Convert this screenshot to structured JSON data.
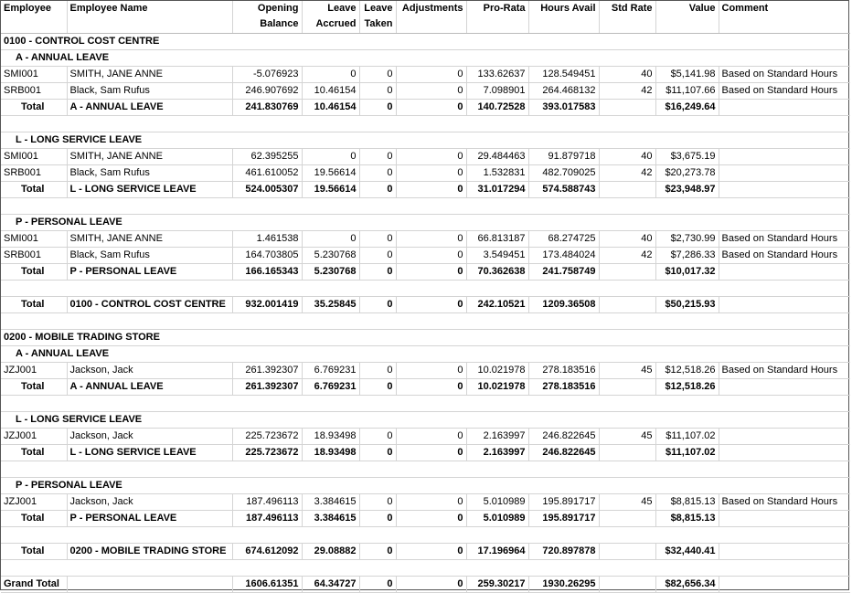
{
  "headers": [
    "Employee",
    "Employee Name",
    "Opening Balance",
    "Leave Accrued",
    "Leave Taken",
    "Adjustments",
    "Pro-Rata",
    "Hours Avail",
    "Std Rate",
    "Value",
    "Comment"
  ],
  "rows": [
    {
      "type": "section",
      "text": "0100 - CONTROL COST CENTRE"
    },
    {
      "type": "subsection",
      "text": "A  - ANNUAL LEAVE"
    },
    {
      "type": "data",
      "cells": [
        "SMI001",
        "SMITH, JANE ANNE",
        "-5.076923",
        "0",
        "0",
        "0",
        "133.62637",
        "128.549451",
        "40",
        "$5,141.98",
        "Based on Standard Hours"
      ]
    },
    {
      "type": "data",
      "cells": [
        "SRB001",
        "Black, Sam Rufus",
        "246.907692",
        "10.46154",
        "0",
        "0",
        "7.098901",
        "264.468132",
        "42",
        "$11,107.66",
        "Based on Standard Hours"
      ]
    },
    {
      "type": "total",
      "cells": [
        "Total",
        "A  - ANNUAL LEAVE",
        "241.830769",
        "10.46154",
        "0",
        "0",
        "140.72528",
        "393.017583",
        "",
        "$16,249.64",
        ""
      ]
    },
    {
      "type": "blank"
    },
    {
      "type": "subsection",
      "text": "L  - LONG SERVICE LEAVE"
    },
    {
      "type": "data",
      "cells": [
        "SMI001",
        "SMITH, JANE ANNE",
        "62.395255",
        "0",
        "0",
        "0",
        "29.484463",
        "91.879718",
        "40",
        "$3,675.19",
        ""
      ]
    },
    {
      "type": "data",
      "cells": [
        "SRB001",
        "Black, Sam Rufus",
        "461.610052",
        "19.56614",
        "0",
        "0",
        "1.532831",
        "482.709025",
        "42",
        "$20,273.78",
        ""
      ]
    },
    {
      "type": "total",
      "cells": [
        "Total",
        "L  - LONG SERVICE LEAVE",
        "524.005307",
        "19.56614",
        "0",
        "0",
        "31.017294",
        "574.588743",
        "",
        "$23,948.97",
        ""
      ]
    },
    {
      "type": "blank"
    },
    {
      "type": "subsection",
      "text": "P  - PERSONAL LEAVE"
    },
    {
      "type": "data",
      "cells": [
        "SMI001",
        "SMITH, JANE ANNE",
        "1.461538",
        "0",
        "0",
        "0",
        "66.813187",
        "68.274725",
        "40",
        "$2,730.99",
        "Based on Standard Hours"
      ]
    },
    {
      "type": "data",
      "cells": [
        "SRB001",
        "Black, Sam Rufus",
        "164.703805",
        "5.230768",
        "0",
        "0",
        "3.549451",
        "173.484024",
        "42",
        "$7,286.33",
        "Based on Standard Hours"
      ]
    },
    {
      "type": "total",
      "cells": [
        "Total",
        "P  - PERSONAL LEAVE",
        "166.165343",
        "5.230768",
        "0",
        "0",
        "70.362638",
        "241.758749",
        "",
        "$10,017.32",
        ""
      ]
    },
    {
      "type": "blank"
    },
    {
      "type": "total",
      "cells": [
        "Total",
        "0100 - CONTROL COST CENTRE",
        "932.001419",
        "35.25845",
        "0",
        "0",
        "242.10521",
        "1209.36508",
        "",
        "$50,215.93",
        ""
      ]
    },
    {
      "type": "blank"
    },
    {
      "type": "section",
      "text": "0200 - MOBILE TRADING STORE"
    },
    {
      "type": "subsection",
      "text": "A  - ANNUAL LEAVE"
    },
    {
      "type": "data",
      "cells": [
        "JZJ001",
        "Jackson, Jack",
        "261.392307",
        "6.769231",
        "0",
        "0",
        "10.021978",
        "278.183516",
        "45",
        "$12,518.26",
        "Based on Standard Hours"
      ]
    },
    {
      "type": "total",
      "cells": [
        "Total",
        "A  - ANNUAL LEAVE",
        "261.392307",
        "6.769231",
        "0",
        "0",
        "10.021978",
        "278.183516",
        "",
        "$12,518.26",
        ""
      ]
    },
    {
      "type": "blank"
    },
    {
      "type": "subsection",
      "text": "L  - LONG SERVICE LEAVE"
    },
    {
      "type": "data",
      "cells": [
        "JZJ001",
        "Jackson, Jack",
        "225.723672",
        "18.93498",
        "0",
        "0",
        "2.163997",
        "246.822645",
        "45",
        "$11,107.02",
        ""
      ]
    },
    {
      "type": "total",
      "cells": [
        "Total",
        "L  - LONG SERVICE LEAVE",
        "225.723672",
        "18.93498",
        "0",
        "0",
        "2.163997",
        "246.822645",
        "",
        "$11,107.02",
        ""
      ]
    },
    {
      "type": "blank"
    },
    {
      "type": "subsection",
      "text": "P  - PERSONAL LEAVE"
    },
    {
      "type": "data",
      "cells": [
        "JZJ001",
        "Jackson, Jack",
        "187.496113",
        "3.384615",
        "0",
        "0",
        "5.010989",
        "195.891717",
        "45",
        "$8,815.13",
        "Based on Standard Hours"
      ]
    },
    {
      "type": "total",
      "cells": [
        "Total",
        "P  - PERSONAL LEAVE",
        "187.496113",
        "3.384615",
        "0",
        "0",
        "5.010989",
        "195.891717",
        "",
        "$8,815.13",
        ""
      ]
    },
    {
      "type": "blank"
    },
    {
      "type": "total",
      "cells": [
        "Total",
        "0200 - MOBILE TRADING STORE",
        "674.612092",
        "29.08882",
        "0",
        "0",
        "17.196964",
        "720.897878",
        "",
        "$32,440.41",
        ""
      ]
    },
    {
      "type": "blank"
    },
    {
      "type": "grand",
      "cells": [
        "Grand Total",
        "",
        "1606.61351",
        "64.34727",
        "0",
        "0",
        "259.30217",
        "1930.26295",
        "",
        "$82,656.34",
        ""
      ]
    }
  ]
}
